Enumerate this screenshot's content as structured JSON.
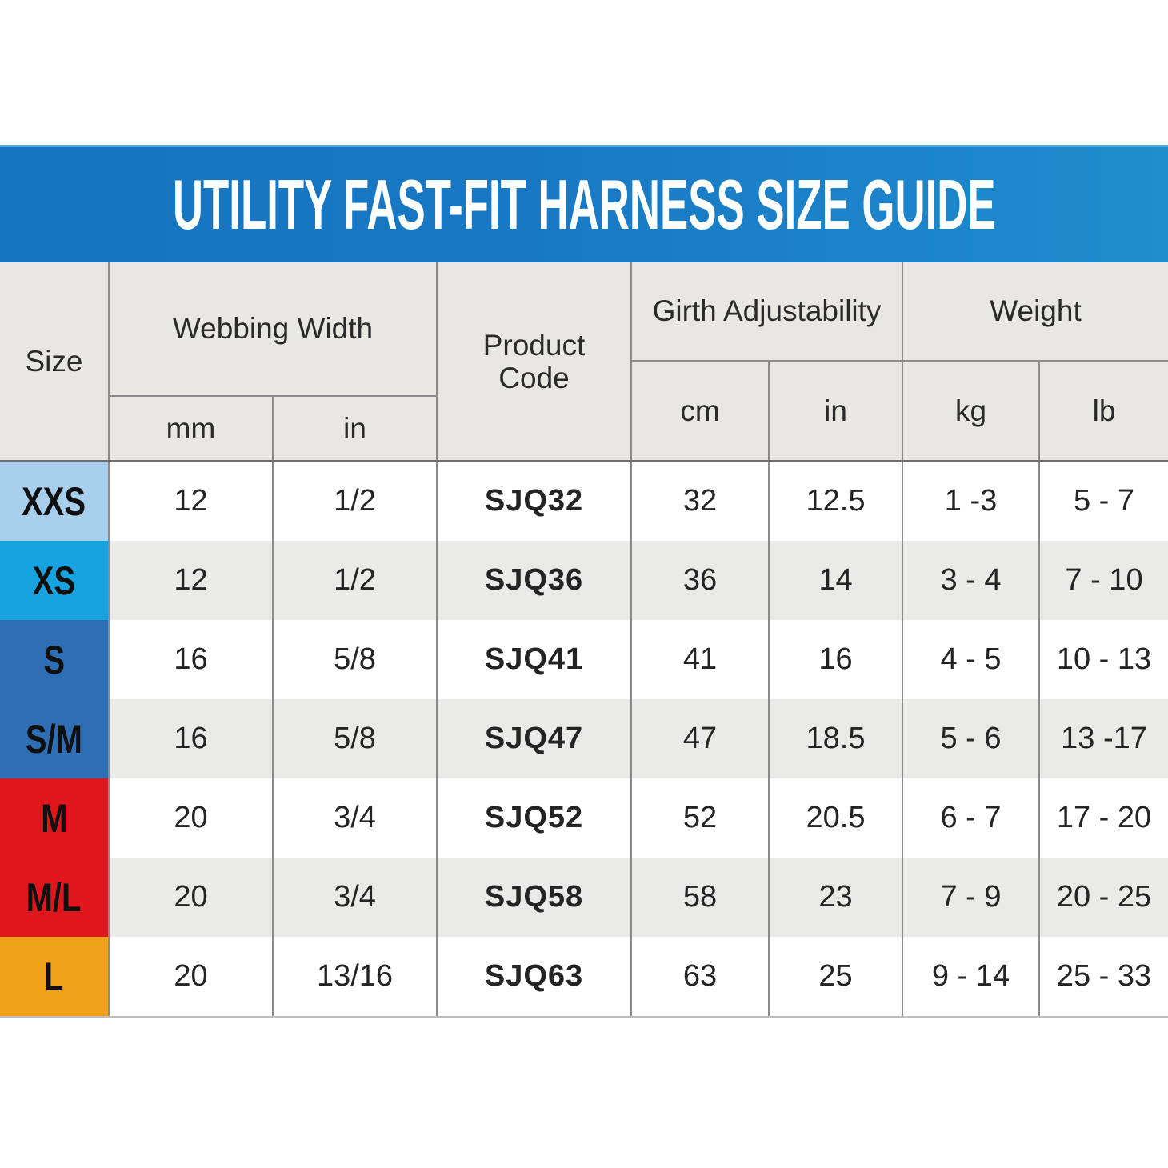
{
  "chart_data": {
    "type": "table",
    "title": "UTILITY FAST-FIT HARNESS SIZE GUIDE",
    "headers": {
      "size": "Size",
      "webbing_width": "Webbing Width",
      "webbing_mm": "mm",
      "webbing_in": "in",
      "product_code": "Product Code",
      "girth_adjustability": "Girth Adjustability",
      "girth_cm": "cm",
      "girth_in": "in",
      "weight": "Weight",
      "weight_kg": "kg",
      "weight_lb": "lb"
    },
    "rows": [
      {
        "size": "XXS",
        "color": "#a7cfec",
        "webbing_mm": "12",
        "webbing_in": "1/2",
        "code": "SJQ32",
        "girth_cm": "32",
        "girth_in": "12.5",
        "weight_kg": "1 -3",
        "weight_lb": "5 - 7"
      },
      {
        "size": "XS",
        "color": "#16a3e0",
        "webbing_mm": "12",
        "webbing_in": "1/2",
        "code": "SJQ36",
        "girth_cm": "36",
        "girth_in": "14",
        "weight_kg": "3 - 4",
        "weight_lb": "7 - 10"
      },
      {
        "size": "S",
        "color": "#2e6eb5",
        "webbing_mm": "16",
        "webbing_in": "5/8",
        "code": "SJQ41",
        "girth_cm": "41",
        "girth_in": "16",
        "weight_kg": "4 - 5",
        "weight_lb": "10 - 13"
      },
      {
        "size": "S/M",
        "color": "#2e6eb5",
        "webbing_mm": "16",
        "webbing_in": "5/8",
        "code": "SJQ47",
        "girth_cm": "47",
        "girth_in": "18.5",
        "weight_kg": "5 - 6",
        "weight_lb": "13 -17"
      },
      {
        "size": "M",
        "color": "#e0161d",
        "webbing_mm": "20",
        "webbing_in": "3/4",
        "code": "SJQ52",
        "girth_cm": "52",
        "girth_in": "20.5",
        "weight_kg": "6 - 7",
        "weight_lb": "17 - 20"
      },
      {
        "size": "M/L",
        "color": "#e0161d",
        "webbing_mm": "20",
        "webbing_in": "3/4",
        "code": "SJQ58",
        "girth_cm": "58",
        "girth_in": "23",
        "weight_kg": "7 - 9",
        "weight_lb": "20 - 25"
      },
      {
        "size": "L",
        "color": "#f2a11b",
        "webbing_mm": "20",
        "webbing_in": "13/16",
        "code": "SJQ63",
        "girth_cm": "63",
        "girth_in": "25",
        "weight_kg": "9 - 14",
        "weight_lb": "25 - 33"
      }
    ],
    "layout": {
      "grid": "on",
      "row_striping": "alternating white and light gray",
      "header_rows": 2
    }
  },
  "colors": {
    "banner_left": "#1474bf",
    "banner_right": "#1f8dce",
    "banner_text": "#ffffff",
    "grid_line": "#8b8b8b",
    "header_bg": "#e8e7e4",
    "row_alt_bg": "#eaeae8",
    "size_xxs": "#a7cfec",
    "size_xs": "#16a3e0",
    "size_s_sm": "#2e6eb5",
    "size_m_ml": "#e0161d",
    "size_l": "#f2a11b"
  }
}
